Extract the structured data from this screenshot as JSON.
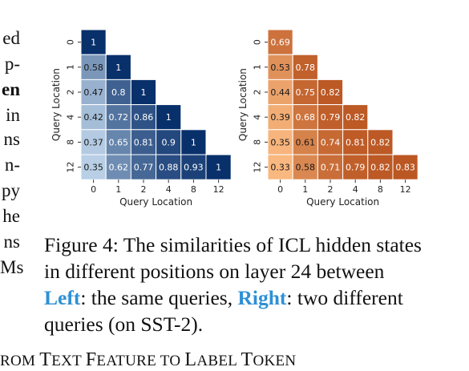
{
  "left_column_fragments": [
    "ed",
    "p-",
    "en",
    "in",
    "ns",
    "n-",
    "py",
    "he",
    "ns",
    "Ms"
  ],
  "caption": {
    "prefix": "Figure 4: The similarities of ICL hidden states in different positions on layer 24 between ",
    "left_word": "Left",
    "middle": ": the same queries, ",
    "right_word": "Right",
    "suffix": ": two different queries (on SST-2)."
  },
  "bottom_heading": {
    "parts": [
      {
        "text": "ROM ",
        "small": true
      },
      {
        "text": "T",
        "small": false
      },
      {
        "text": "EXT ",
        "small": true
      },
      {
        "text": "F",
        "small": false
      },
      {
        "text": "EATURE TO ",
        "small": true
      },
      {
        "text": "L",
        "small": false
      },
      {
        "text": "ABEL ",
        "small": true
      },
      {
        "text": "T",
        "small": false
      },
      {
        "text": "OKEN",
        "small": true
      }
    ]
  },
  "colors": {
    "highlight": "#2e90d6",
    "blue_scale": [
      "#c6dbef",
      "#08306b"
    ],
    "orange_scale": [
      "#fdbe85",
      "#a63603"
    ]
  },
  "chart_data": [
    {
      "type": "heatmap",
      "colormap": "Blues",
      "xlabel": "Query Location",
      "ylabel": "Query Location",
      "x_ticks": [
        "0",
        "1",
        "2",
        "4",
        "8",
        "12"
      ],
      "y_ticks": [
        "0",
        "1",
        "2",
        "4",
        "8",
        "12"
      ],
      "mask": "lower-triangular",
      "values": [
        [
          1
        ],
        [
          0.58,
          1
        ],
        [
          0.47,
          0.8,
          1
        ],
        [
          0.42,
          0.72,
          0.86,
          1
        ],
        [
          0.37,
          0.65,
          0.81,
          0.9,
          1
        ],
        [
          0.35,
          0.62,
          0.77,
          0.88,
          0.93,
          1
        ]
      ]
    },
    {
      "type": "heatmap",
      "colormap": "Oranges",
      "xlabel": "Query Location",
      "ylabel": "Query Location",
      "x_ticks": [
        "0",
        "1",
        "2",
        "4",
        "8",
        "12"
      ],
      "y_ticks": [
        "0",
        "1",
        "2",
        "4",
        "8",
        "12"
      ],
      "mask": "lower-triangular",
      "values": [
        [
          0.69
        ],
        [
          0.53,
          0.78
        ],
        [
          0.44,
          0.75,
          0.82
        ],
        [
          0.39,
          0.68,
          0.79,
          0.82
        ],
        [
          0.35,
          0.61,
          0.74,
          0.81,
          0.82
        ],
        [
          0.33,
          0.58,
          0.71,
          0.79,
          0.82,
          0.83
        ]
      ]
    }
  ]
}
